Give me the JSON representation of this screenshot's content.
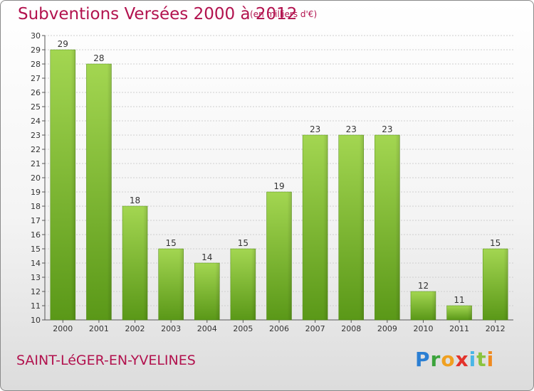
{
  "chart_data": {
    "type": "bar",
    "title": "Subventions Versées 2000 à 2012",
    "subtitle": "(en milliers d'€)",
    "categories": [
      "2000",
      "2001",
      "2002",
      "2003",
      "2004",
      "2005",
      "2006",
      "2007",
      "2008",
      "2009",
      "2010",
      "2011",
      "2012"
    ],
    "values": [
      29,
      28,
      18,
      15,
      14,
      15,
      19,
      23,
      23,
      23,
      12,
      11,
      15
    ],
    "ylim": [
      10,
      30
    ],
    "yticks": [
      10,
      11,
      12,
      13,
      14,
      15,
      16,
      17,
      18,
      19,
      20,
      21,
      22,
      23,
      24,
      25,
      26,
      27,
      28,
      29,
      30
    ],
    "grid": true,
    "legend": "none"
  },
  "location": "SAINT-LéGER-EN-YVELINES",
  "brand": {
    "letters": [
      "P",
      "r",
      "o",
      "x",
      "i",
      "t",
      "i"
    ]
  },
  "colors": {
    "bar_light": "#9fd24a",
    "bar_dark": "#5c9a17",
    "title": "#b2124e"
  }
}
